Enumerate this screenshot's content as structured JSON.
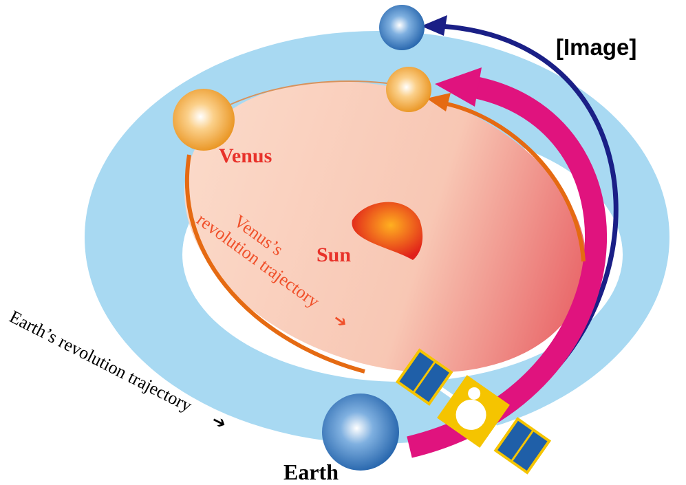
{
  "corner_label": "[Image]",
  "labels": {
    "venus": "Venus",
    "sun": "Sun",
    "earth": "Earth",
    "venus_trajectory": [
      "Venus’s",
      "revolution trajectory"
    ],
    "earth_trajectory": "Earth’s revolution trajectory"
  }
}
